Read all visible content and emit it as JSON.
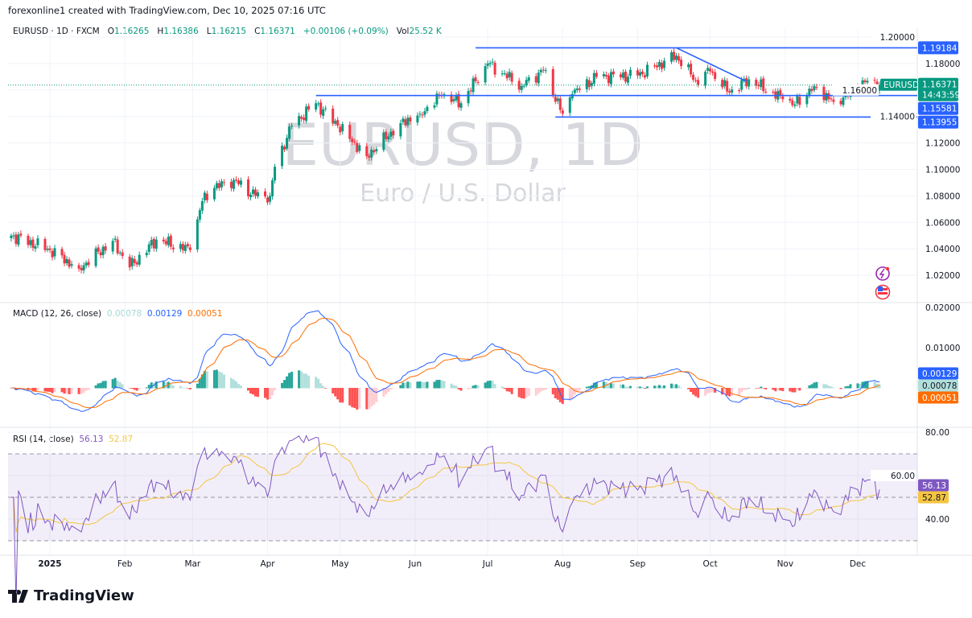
{
  "credit": "forexonline1 created with TradingView.com, Dec 10, 2025 07:16 UTC",
  "legend": {
    "symbol": "EURUSD · 1D · FXCM",
    "o_label": "O",
    "o": "1.16265",
    "h_label": "H",
    "h": "1.16386",
    "l_label": "L",
    "l": "1.16215",
    "c_label": "C",
    "c": "1.16371",
    "change": "+0.00106 (+0.09%)",
    "vol_label": "Vol",
    "vol": "25.52 K"
  },
  "watermark": {
    "title": "EURUSD, 1D",
    "subtitle": "Euro / U.S. Dollar"
  },
  "macd_legend": {
    "label": "MACD (12, 26, close)",
    "hist": "0.00078",
    "macd": "0.00129",
    "signal": "0.00051"
  },
  "rsi_legend": {
    "label": "RSI (14, close)",
    "rsi": "56.13",
    "ma": "52.87"
  },
  "brand": "TradingView",
  "colors": {
    "up": "#089981",
    "down": "#f23645",
    "drawing": "#2962ff",
    "macd": "#2962ff",
    "signal": "#ff6d00",
    "rsi": "#7e57c2",
    "rsi_ma": "#f5c542"
  },
  "icons": [
    "lightning-icon",
    "us-flag-icon"
  ],
  "chart_data": [
    {
      "type": "candlestick",
      "title": "EURUSD, 1D",
      "ylim": [
        1.005,
        1.205
      ],
      "yticks": [
        "1.20000",
        "1.18000",
        "1.16000",
        "1.14000",
        "1.12000",
        "1.10000",
        "1.08000",
        "1.06000",
        "1.04000",
        "1.02000"
      ],
      "xticks": [
        "2025",
        "Feb",
        "Mar",
        "Apr",
        "May",
        "Jun",
        "Jul",
        "Aug",
        "Sep",
        "Oct",
        "Nov",
        "Dec"
      ],
      "close_anchors": [
        [
          "2024-12-16",
          1.05
        ],
        [
          "2024-12-31",
          1.04
        ],
        [
          "2025-01-13",
          1.025
        ],
        [
          "2025-01-27",
          1.046
        ],
        [
          "2025-02-03",
          1.026
        ],
        [
          "2025-02-14",
          1.047
        ],
        [
          "2025-02-28",
          1.039
        ],
        [
          "2025-03-05",
          1.076
        ],
        [
          "2025-03-10",
          1.086
        ],
        [
          "2025-03-18",
          1.092
        ],
        [
          "2025-03-27",
          1.08
        ],
        [
          "2025-04-02",
          1.08
        ],
        [
          "2025-04-04",
          1.102
        ],
        [
          "2025-04-11",
          1.133
        ],
        [
          "2025-04-21",
          1.15
        ],
        [
          "2025-04-30",
          1.133
        ],
        [
          "2025-05-12",
          1.11
        ],
        [
          "2025-05-26",
          1.135
        ],
        [
          "2025-06-03",
          1.142
        ],
        [
          "2025-06-12",
          1.156
        ],
        [
          "2025-06-20",
          1.15
        ],
        [
          "2025-06-30",
          1.178
        ],
        [
          "2025-07-01",
          1.18
        ],
        [
          "2025-07-15",
          1.163
        ],
        [
          "2025-07-24",
          1.175
        ],
        [
          "2025-08-01",
          1.142
        ],
        [
          "2025-08-05",
          1.157
        ],
        [
          "2025-08-15",
          1.17
        ],
        [
          "2025-09-01",
          1.171
        ],
        [
          "2025-09-17",
          1.186
        ],
        [
          "2025-09-25",
          1.167
        ],
        [
          "2025-10-01",
          1.174
        ],
        [
          "2025-10-09",
          1.158
        ],
        [
          "2025-10-17",
          1.168
        ],
        [
          "2025-10-31",
          1.153
        ],
        [
          "2025-11-05",
          1.149
        ],
        [
          "2025-11-13",
          1.163
        ],
        [
          "2025-11-21",
          1.151
        ],
        [
          "2025-12-01",
          1.161
        ],
        [
          "2025-12-04",
          1.166
        ],
        [
          "2025-12-10",
          1.16371
        ]
      ],
      "last_price": {
        "value": "1.16371",
        "symbol": "EURUSD",
        "countdown": "14:43:59"
      },
      "drawings": [
        {
          "type": "hline",
          "price": 1.19184,
          "label": "1.19184",
          "from": "2025-06-26"
        },
        {
          "type": "hline",
          "price": 1.15581,
          "label": "1.15581",
          "from": "2025-04-21"
        },
        {
          "type": "hline",
          "price": 1.13955,
          "label": "1.13955",
          "from": "2025-07-29"
        },
        {
          "type": "trendline",
          "from": [
            "2025-09-17",
            1.19184
          ],
          "to": [
            "2025-10-16",
            1.1665
          ]
        }
      ]
    },
    {
      "type": "line",
      "title": "MACD (12, 26, close)",
      "ylim": [
        -0.008,
        0.021
      ],
      "yticks": [
        "0.02000",
        "0.01000"
      ],
      "series": [
        {
          "name": "MACD",
          "last": "0.00129"
        },
        {
          "name": "Signal",
          "last": "0.00051"
        },
        {
          "name": "Histogram",
          "last": "0.00078"
        }
      ]
    },
    {
      "type": "line",
      "title": "RSI (14, close)",
      "ylim": [
        25,
        84
      ],
      "yticks": [
        "80.00",
        "60.00",
        "40.00"
      ],
      "bands": [
        70,
        50,
        30
      ],
      "series": [
        {
          "name": "RSI",
          "last": "56.13"
        },
        {
          "name": "RSI MA",
          "last": "52.87"
        }
      ]
    }
  ]
}
